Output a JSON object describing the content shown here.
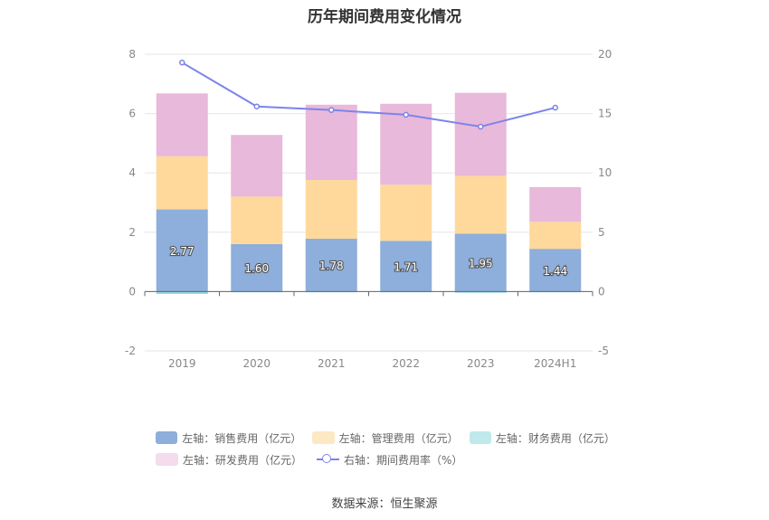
{
  "chart_data": {
    "type": "bar",
    "title": "历年期间费用变化情况",
    "categories": [
      "2019",
      "2020",
      "2021",
      "2022",
      "2023",
      "2024H1"
    ],
    "left_axis": {
      "min": -2,
      "max": 8,
      "ticks": [
        "-2",
        "0",
        "2",
        "4",
        "6",
        "8"
      ]
    },
    "right_axis": {
      "min": -5,
      "max": 20,
      "ticks": [
        "-5",
        "0",
        "5",
        "10",
        "15",
        "20"
      ]
    },
    "series": [
      {
        "name": "左轴：销售费用（亿元）",
        "axis": "left",
        "stack": "a",
        "color": "#8eaedb",
        "values": [
          2.77,
          1.6,
          1.78,
          1.71,
          1.95,
          1.44
        ],
        "labels": [
          "2.77",
          "1.60",
          "1.78",
          "1.71",
          "1.95",
          "1.44"
        ]
      },
      {
        "name": "左轴：管理费用（亿元）",
        "axis": "left",
        "stack": "a",
        "color": "#fed99b",
        "values": [
          1.79,
          1.6,
          1.98,
          1.89,
          1.95,
          0.91
        ]
      },
      {
        "name": "左轴：财务费用（亿元）",
        "axis": "left",
        "stack": "a",
        "color": "#8fd8dc",
        "values": [
          -0.08,
          -0.01,
          -0.01,
          -0.02,
          -0.04,
          -0.01
        ]
      },
      {
        "name": "左轴：研发费用（亿元）",
        "axis": "left",
        "stack": "a",
        "color": "#e8b9da",
        "values": [
          2.12,
          2.08,
          2.54,
          2.73,
          2.8,
          1.17
        ]
      },
      {
        "name": "右轴：期间费用率（%）",
        "axis": "right",
        "type": "line",
        "color": "#7b84ea",
        "values": [
          19.3,
          15.6,
          15.3,
          14.9,
          13.9,
          15.5
        ]
      }
    ],
    "legend_position": "bottom",
    "grid": true
  },
  "legend": [
    {
      "label": "左轴：销售费用（亿元）",
      "color": "#8eaedb",
      "kind": "box"
    },
    {
      "label": "左轴：管理费用（亿元）",
      "color": "#fde8c4",
      "kind": "box"
    },
    {
      "label": "左轴：财务费用（亿元）",
      "color": "#bfe9ea",
      "kind": "box"
    },
    {
      "label": "左轴：研发费用（亿元）",
      "color": "#f4dcec",
      "kind": "box"
    },
    {
      "label": "右轴：期间费用率（%）",
      "color": "#7b84ea",
      "kind": "line"
    }
  ],
  "source": "数据来源：恒生聚源"
}
